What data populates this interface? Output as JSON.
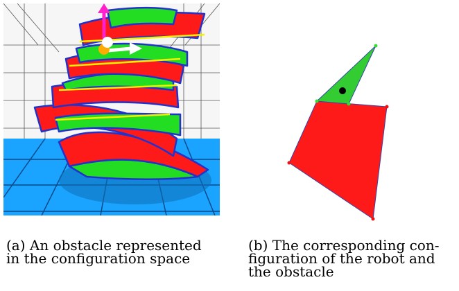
{
  "figure": {
    "panel_a": {
      "caption_lines": [
        "(a) An obstacle represented",
        "in the configuration space"
      ],
      "colors": {
        "ribbon_red": "#ff1a1a",
        "ribbon_green": "#22dd22",
        "edge_blue": "#2233cc",
        "seam_yellow": "#f5f000",
        "floor_blue": "#1aa3ff",
        "axis_magenta": "#ff22cc",
        "axis_white": "#ffffff",
        "origin_orange": "#ffaa00"
      }
    },
    "panel_b": {
      "caption_lines": [
        "(b) The corresponding con-",
        "figuration of the robot and",
        "the obstacle"
      ],
      "colors": {
        "obstacle_red": "#ff1a1a",
        "robot_green": "#33cc33",
        "vertex_red": "#ee1111",
        "vertex_green": "#33dd33",
        "center_black": "#000000",
        "outline": "#3344aa"
      }
    }
  }
}
